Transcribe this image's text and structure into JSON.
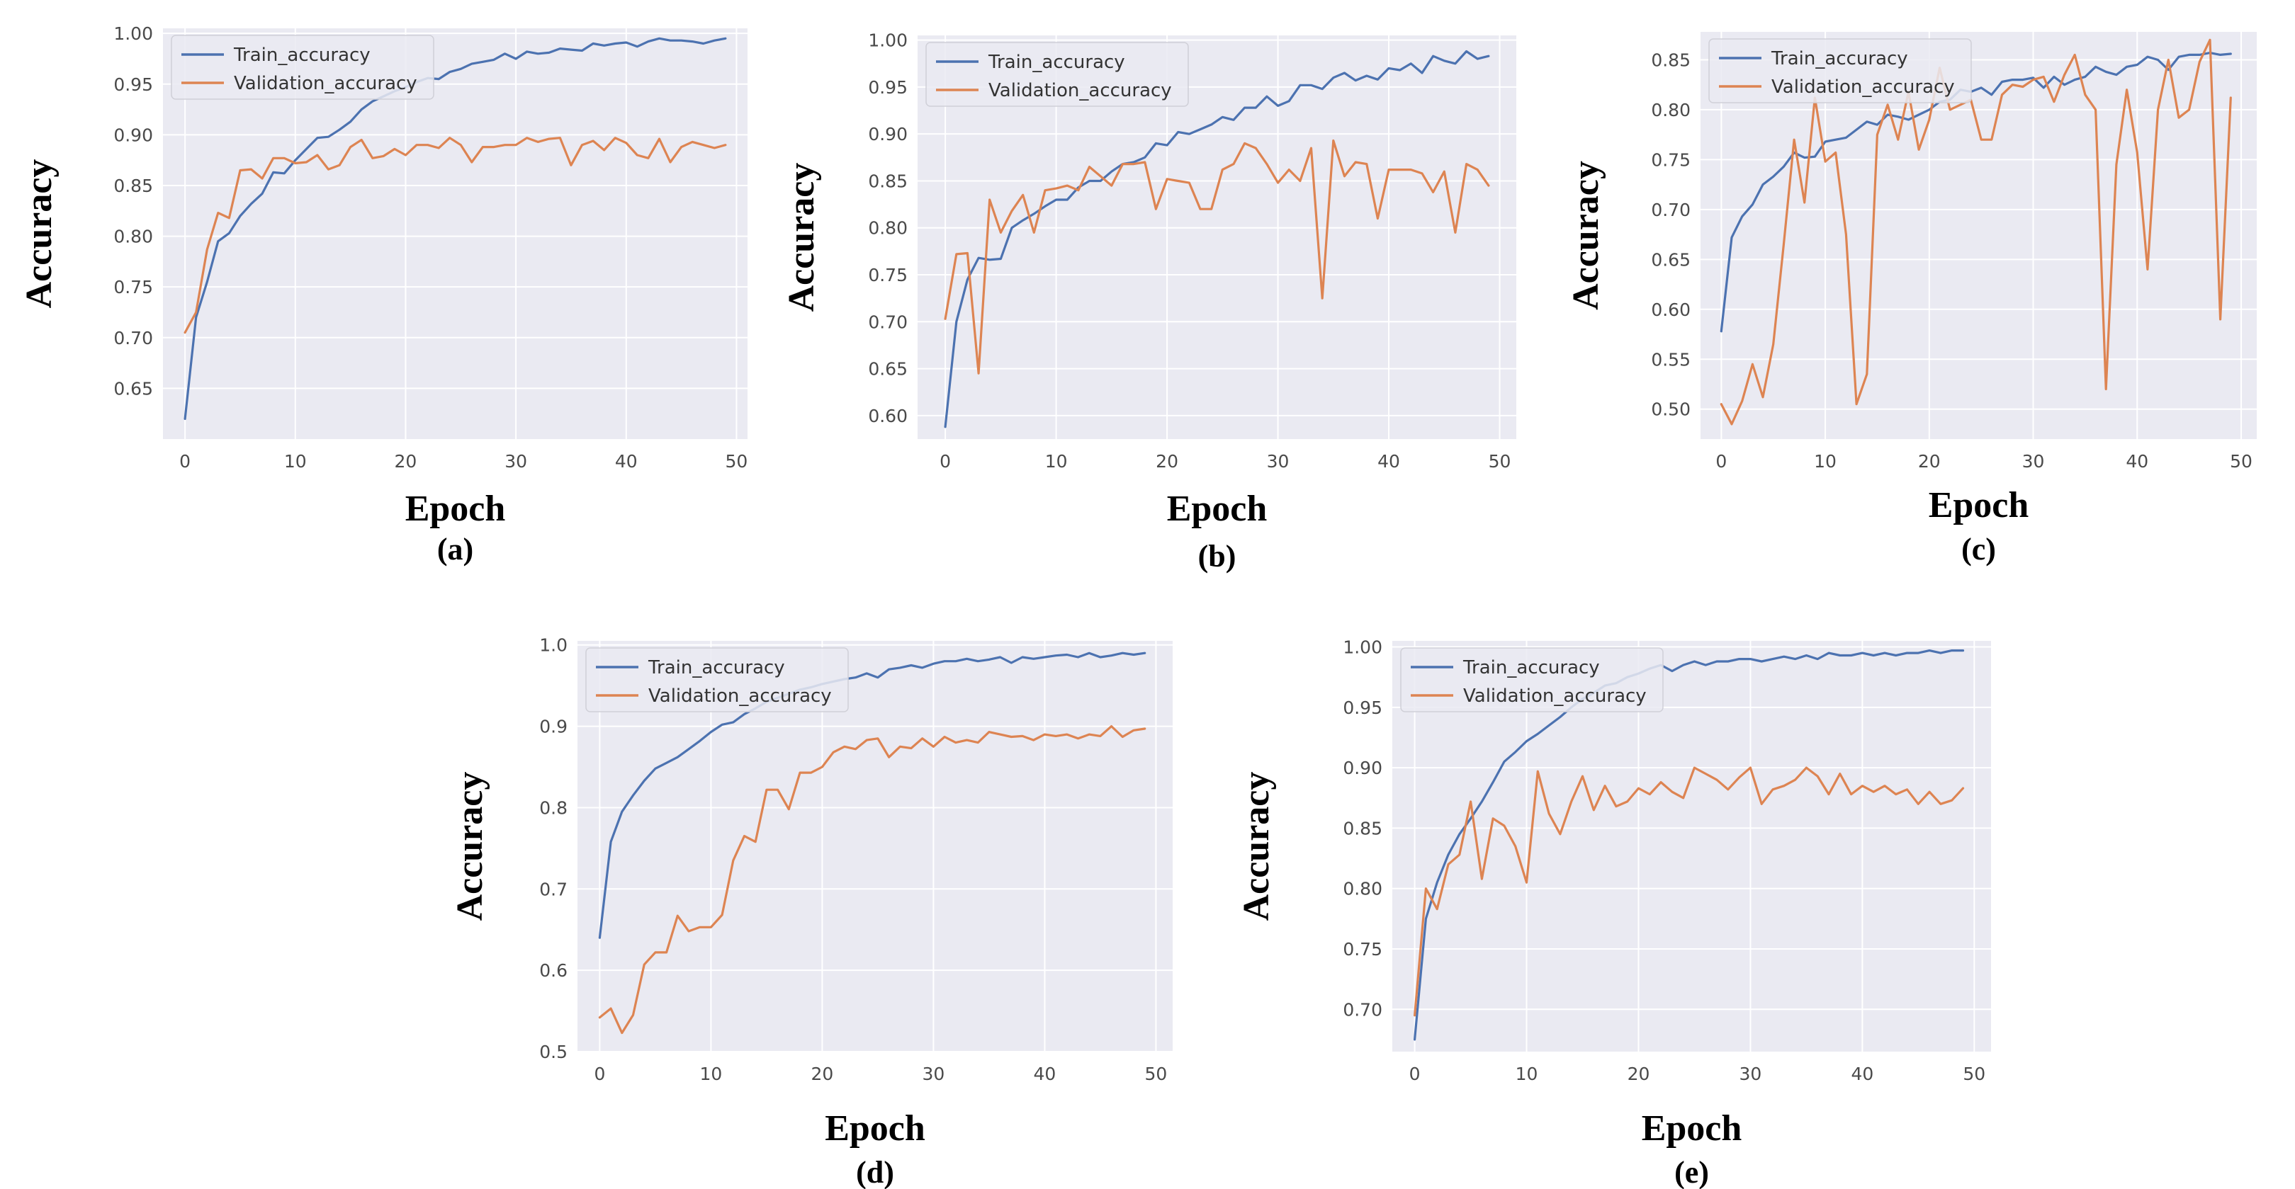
{
  "colors": {
    "train": "#4c72b0",
    "validation": "#dd8452",
    "background": "#eaeaf2",
    "grid": "#ffffff"
  },
  "chart_data": [
    {
      "type": "line",
      "id": "a",
      "caption": "(a)",
      "xlabel": "Epoch",
      "ylabel": "Accuracy",
      "xlim": [
        -2,
        51
      ],
      "ylim": [
        0.6,
        1.005
      ],
      "xticks": [
        0,
        10,
        20,
        30,
        40,
        50
      ],
      "xtick_labels": [
        "0",
        "10",
        "20",
        "30",
        "40",
        "50"
      ],
      "yticks": [
        0.65,
        0.7,
        0.75,
        0.8,
        0.85,
        0.9,
        0.95,
        1.0
      ],
      "ytick_labels": [
        "0.65",
        "0.70",
        "0.75",
        "0.80",
        "0.85",
        "0.90",
        "0.95",
        "1.00"
      ],
      "legend": {
        "loc": "upper-left"
      },
      "series": [
        {
          "name": "Train_accuracy",
          "values": [
            0.62,
            0.72,
            0.755,
            0.795,
            0.803,
            0.82,
            0.832,
            0.842,
            0.863,
            0.862,
            0.875,
            0.886,
            0.897,
            0.898,
            0.905,
            0.913,
            0.925,
            0.933,
            0.938,
            0.943,
            0.947,
            0.952,
            0.956,
            0.955,
            0.962,
            0.965,
            0.97,
            0.972,
            0.974,
            0.98,
            0.975,
            0.982,
            0.98,
            0.981,
            0.985,
            0.984,
            0.983,
            0.99,
            0.988,
            0.99,
            0.991,
            0.987,
            0.992,
            0.995,
            0.993,
            0.993,
            0.992,
            0.99,
            0.993,
            0.995
          ]
        },
        {
          "name": "Validation_accuracy",
          "values": [
            0.705,
            0.725,
            0.787,
            0.823,
            0.818,
            0.865,
            0.866,
            0.857,
            0.877,
            0.877,
            0.872,
            0.873,
            0.88,
            0.866,
            0.87,
            0.888,
            0.895,
            0.877,
            0.879,
            0.886,
            0.88,
            0.89,
            0.89,
            0.887,
            0.897,
            0.89,
            0.873,
            0.888,
            0.888,
            0.89,
            0.89,
            0.897,
            0.893,
            0.896,
            0.897,
            0.87,
            0.89,
            0.894,
            0.885,
            0.897,
            0.892,
            0.88,
            0.877,
            0.896,
            0.873,
            0.888,
            0.893,
            0.89,
            0.887,
            0.89
          ]
        }
      ]
    },
    {
      "type": "line",
      "id": "b",
      "caption": "(b)",
      "xlabel": "Epoch",
      "ylabel": "Accuracy",
      "xlim": [
        -2.5,
        51.5
      ],
      "ylim": [
        0.575,
        1.005
      ],
      "xticks": [
        0,
        10,
        20,
        30,
        40,
        50
      ],
      "xtick_labels": [
        "0",
        "10",
        "20",
        "30",
        "40",
        "50"
      ],
      "yticks": [
        0.6,
        0.65,
        0.7,
        0.75,
        0.8,
        0.85,
        0.9,
        0.95,
        1.0
      ],
      "ytick_labels": [
        "0.60",
        "0.65",
        "0.70",
        "0.75",
        "0.80",
        "0.85",
        "0.90",
        "0.95",
        "1.00"
      ],
      "legend": {
        "loc": "upper-left"
      },
      "series": [
        {
          "name": "Train_accuracy",
          "values": [
            0.588,
            0.7,
            0.745,
            0.768,
            0.766,
            0.767,
            0.8,
            0.808,
            0.815,
            0.823,
            0.83,
            0.83,
            0.843,
            0.85,
            0.85,
            0.86,
            0.868,
            0.87,
            0.875,
            0.89,
            0.888,
            0.902,
            0.9,
            0.905,
            0.91,
            0.918,
            0.915,
            0.928,
            0.928,
            0.94,
            0.93,
            0.935,
            0.952,
            0.952,
            0.948,
            0.96,
            0.965,
            0.957,
            0.962,
            0.958,
            0.97,
            0.968,
            0.975,
            0.965,
            0.983,
            0.978,
            0.975,
            0.988,
            0.98,
            0.983
          ]
        },
        {
          "name": "Validation_accuracy",
          "values": [
            0.703,
            0.772,
            0.773,
            0.645,
            0.83,
            0.795,
            0.818,
            0.835,
            0.795,
            0.84,
            0.842,
            0.845,
            0.84,
            0.865,
            0.855,
            0.845,
            0.868,
            0.868,
            0.87,
            0.82,
            0.852,
            0.85,
            0.848,
            0.82,
            0.82,
            0.862,
            0.868,
            0.89,
            0.885,
            0.868,
            0.848,
            0.862,
            0.85,
            0.885,
            0.725,
            0.893,
            0.855,
            0.87,
            0.868,
            0.81,
            0.862,
            0.862,
            0.862,
            0.858,
            0.838,
            0.86,
            0.795,
            0.868,
            0.862,
            0.845
          ]
        }
      ]
    },
    {
      "type": "line",
      "id": "c",
      "caption": "(c)",
      "xlabel": "Epoch",
      "ylabel": "Accuracy",
      "xlim": [
        -2,
        51.5
      ],
      "ylim": [
        0.47,
        0.878
      ],
      "xticks": [
        0,
        10,
        20,
        30,
        40,
        50
      ],
      "xtick_labels": [
        "0",
        "10",
        "20",
        "30",
        "40",
        "50"
      ],
      "yticks": [
        0.5,
        0.55,
        0.6,
        0.65,
        0.7,
        0.75,
        0.8,
        0.85
      ],
      "ytick_labels": [
        "0.50",
        "0.55",
        "0.60",
        "0.65",
        "0.70",
        "0.75",
        "0.80",
        "0.85"
      ],
      "legend": {
        "loc": "upper-left"
      },
      "series": [
        {
          "name": "Train_accuracy",
          "values": [
            0.578,
            0.672,
            0.693,
            0.705,
            0.725,
            0.733,
            0.743,
            0.757,
            0.752,
            0.753,
            0.768,
            0.77,
            0.772,
            0.78,
            0.788,
            0.785,
            0.795,
            0.793,
            0.79,
            0.795,
            0.8,
            0.808,
            0.81,
            0.82,
            0.818,
            0.822,
            0.815,
            0.828,
            0.83,
            0.83,
            0.832,
            0.822,
            0.833,
            0.825,
            0.83,
            0.833,
            0.843,
            0.838,
            0.835,
            0.843,
            0.845,
            0.853,
            0.85,
            0.84,
            0.853,
            0.855,
            0.855,
            0.857,
            0.855,
            0.856
          ]
        },
        {
          "name": "Validation_accuracy",
          "values": [
            0.505,
            0.485,
            0.508,
            0.545,
            0.512,
            0.565,
            0.665,
            0.77,
            0.707,
            0.812,
            0.748,
            0.757,
            0.675,
            0.505,
            0.535,
            0.775,
            0.805,
            0.77,
            0.818,
            0.76,
            0.79,
            0.842,
            0.8,
            0.805,
            0.81,
            0.77,
            0.77,
            0.815,
            0.825,
            0.823,
            0.83,
            0.833,
            0.808,
            0.835,
            0.855,
            0.815,
            0.8,
            0.52,
            0.745,
            0.82,
            0.757,
            0.64,
            0.8,
            0.85,
            0.792,
            0.8,
            0.848,
            0.87,
            0.59,
            0.812
          ]
        }
      ]
    },
    {
      "type": "line",
      "id": "d",
      "caption": "(d)",
      "xlabel": "Epoch",
      "ylabel": "Accuracy",
      "xlim": [
        -2,
        51.5
      ],
      "ylim": [
        0.5,
        1.005
      ],
      "xticks": [
        0,
        10,
        20,
        30,
        40,
        50
      ],
      "xtick_labels": [
        "0",
        "10",
        "20",
        "30",
        "40",
        "50"
      ],
      "yticks": [
        0.5,
        0.6,
        0.7,
        0.8,
        0.9,
        1.0
      ],
      "ytick_labels": [
        "0.5",
        "0.6",
        "0.7",
        "0.8",
        "0.9",
        "1.0"
      ],
      "legend": {
        "loc": "upper-left"
      },
      "series": [
        {
          "name": "Train_accuracy",
          "values": [
            0.64,
            0.758,
            0.795,
            0.815,
            0.833,
            0.848,
            0.855,
            0.862,
            0.872,
            0.882,
            0.893,
            0.902,
            0.905,
            0.915,
            0.922,
            0.93,
            0.935,
            0.94,
            0.945,
            0.948,
            0.952,
            0.955,
            0.958,
            0.96,
            0.965,
            0.96,
            0.97,
            0.972,
            0.975,
            0.972,
            0.977,
            0.98,
            0.98,
            0.983,
            0.98,
            0.982,
            0.985,
            0.978,
            0.985,
            0.983,
            0.985,
            0.987,
            0.988,
            0.985,
            0.99,
            0.985,
            0.987,
            0.99,
            0.988,
            0.99
          ]
        },
        {
          "name": "Validation_accuracy",
          "values": [
            0.542,
            0.553,
            0.523,
            0.545,
            0.607,
            0.622,
            0.622,
            0.667,
            0.648,
            0.653,
            0.653,
            0.668,
            0.735,
            0.765,
            0.758,
            0.822,
            0.822,
            0.798,
            0.843,
            0.843,
            0.85,
            0.868,
            0.875,
            0.872,
            0.883,
            0.885,
            0.862,
            0.875,
            0.873,
            0.885,
            0.875,
            0.887,
            0.88,
            0.883,
            0.88,
            0.893,
            0.89,
            0.887,
            0.888,
            0.883,
            0.89,
            0.888,
            0.89,
            0.885,
            0.89,
            0.888,
            0.9,
            0.887,
            0.895,
            0.897
          ]
        }
      ]
    },
    {
      "type": "line",
      "id": "e",
      "caption": "(e)",
      "xlabel": "Epoch",
      "ylabel": "Accuracy",
      "xlim": [
        -2,
        51.5
      ],
      "ylim": [
        0.665,
        1.005
      ],
      "xticks": [
        0,
        10,
        20,
        30,
        40,
        50
      ],
      "xtick_labels": [
        "0",
        "10",
        "20",
        "30",
        "40",
        "50"
      ],
      "yticks": [
        0.7,
        0.75,
        0.8,
        0.85,
        0.9,
        0.95,
        1.0
      ],
      "ytick_labels": [
        "0.70",
        "0.75",
        "0.80",
        "0.85",
        "0.90",
        "0.95",
        "1.00"
      ],
      "legend": {
        "loc": "upper-left"
      },
      "series": [
        {
          "name": "Train_accuracy",
          "values": [
            0.675,
            0.775,
            0.805,
            0.828,
            0.845,
            0.858,
            0.872,
            0.888,
            0.905,
            0.913,
            0.922,
            0.928,
            0.935,
            0.942,
            0.95,
            0.957,
            0.962,
            0.968,
            0.97,
            0.975,
            0.978,
            0.982,
            0.985,
            0.98,
            0.985,
            0.988,
            0.985,
            0.988,
            0.988,
            0.99,
            0.99,
            0.988,
            0.99,
            0.992,
            0.99,
            0.993,
            0.99,
            0.995,
            0.993,
            0.993,
            0.995,
            0.993,
            0.995,
            0.993,
            0.995,
            0.995,
            0.997,
            0.995,
            0.997,
            0.997
          ]
        },
        {
          "name": "Validation_accuracy",
          "values": [
            0.695,
            0.8,
            0.783,
            0.82,
            0.828,
            0.872,
            0.808,
            0.858,
            0.852,
            0.835,
            0.805,
            0.897,
            0.862,
            0.845,
            0.872,
            0.893,
            0.865,
            0.885,
            0.868,
            0.872,
            0.883,
            0.878,
            0.888,
            0.88,
            0.875,
            0.9,
            0.895,
            0.89,
            0.882,
            0.892,
            0.9,
            0.87,
            0.882,
            0.885,
            0.89,
            0.9,
            0.893,
            0.878,
            0.895,
            0.878,
            0.885,
            0.88,
            0.885,
            0.878,
            0.882,
            0.87,
            0.88,
            0.87,
            0.873,
            0.883
          ]
        }
      ]
    }
  ]
}
